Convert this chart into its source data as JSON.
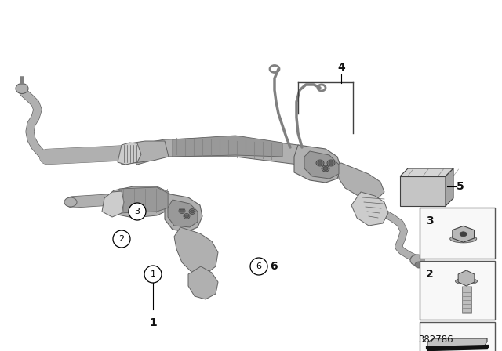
{
  "background_color": "#ffffff",
  "diagram_number": "382786",
  "gray_main": "#b0b0b0",
  "gray_mid": "#999999",
  "gray_dark": "#808080",
  "gray_light": "#cccccc",
  "gray_very_light": "#e0e0e0",
  "edge_color": "#606060",
  "dark_edge": "#404040",
  "box_border": "#555555",
  "label_4_bracket_color": "#333333",
  "text_color": "#111111",
  "callout_fs": 8,
  "label_fs": 10,
  "num_fs": 8.5
}
